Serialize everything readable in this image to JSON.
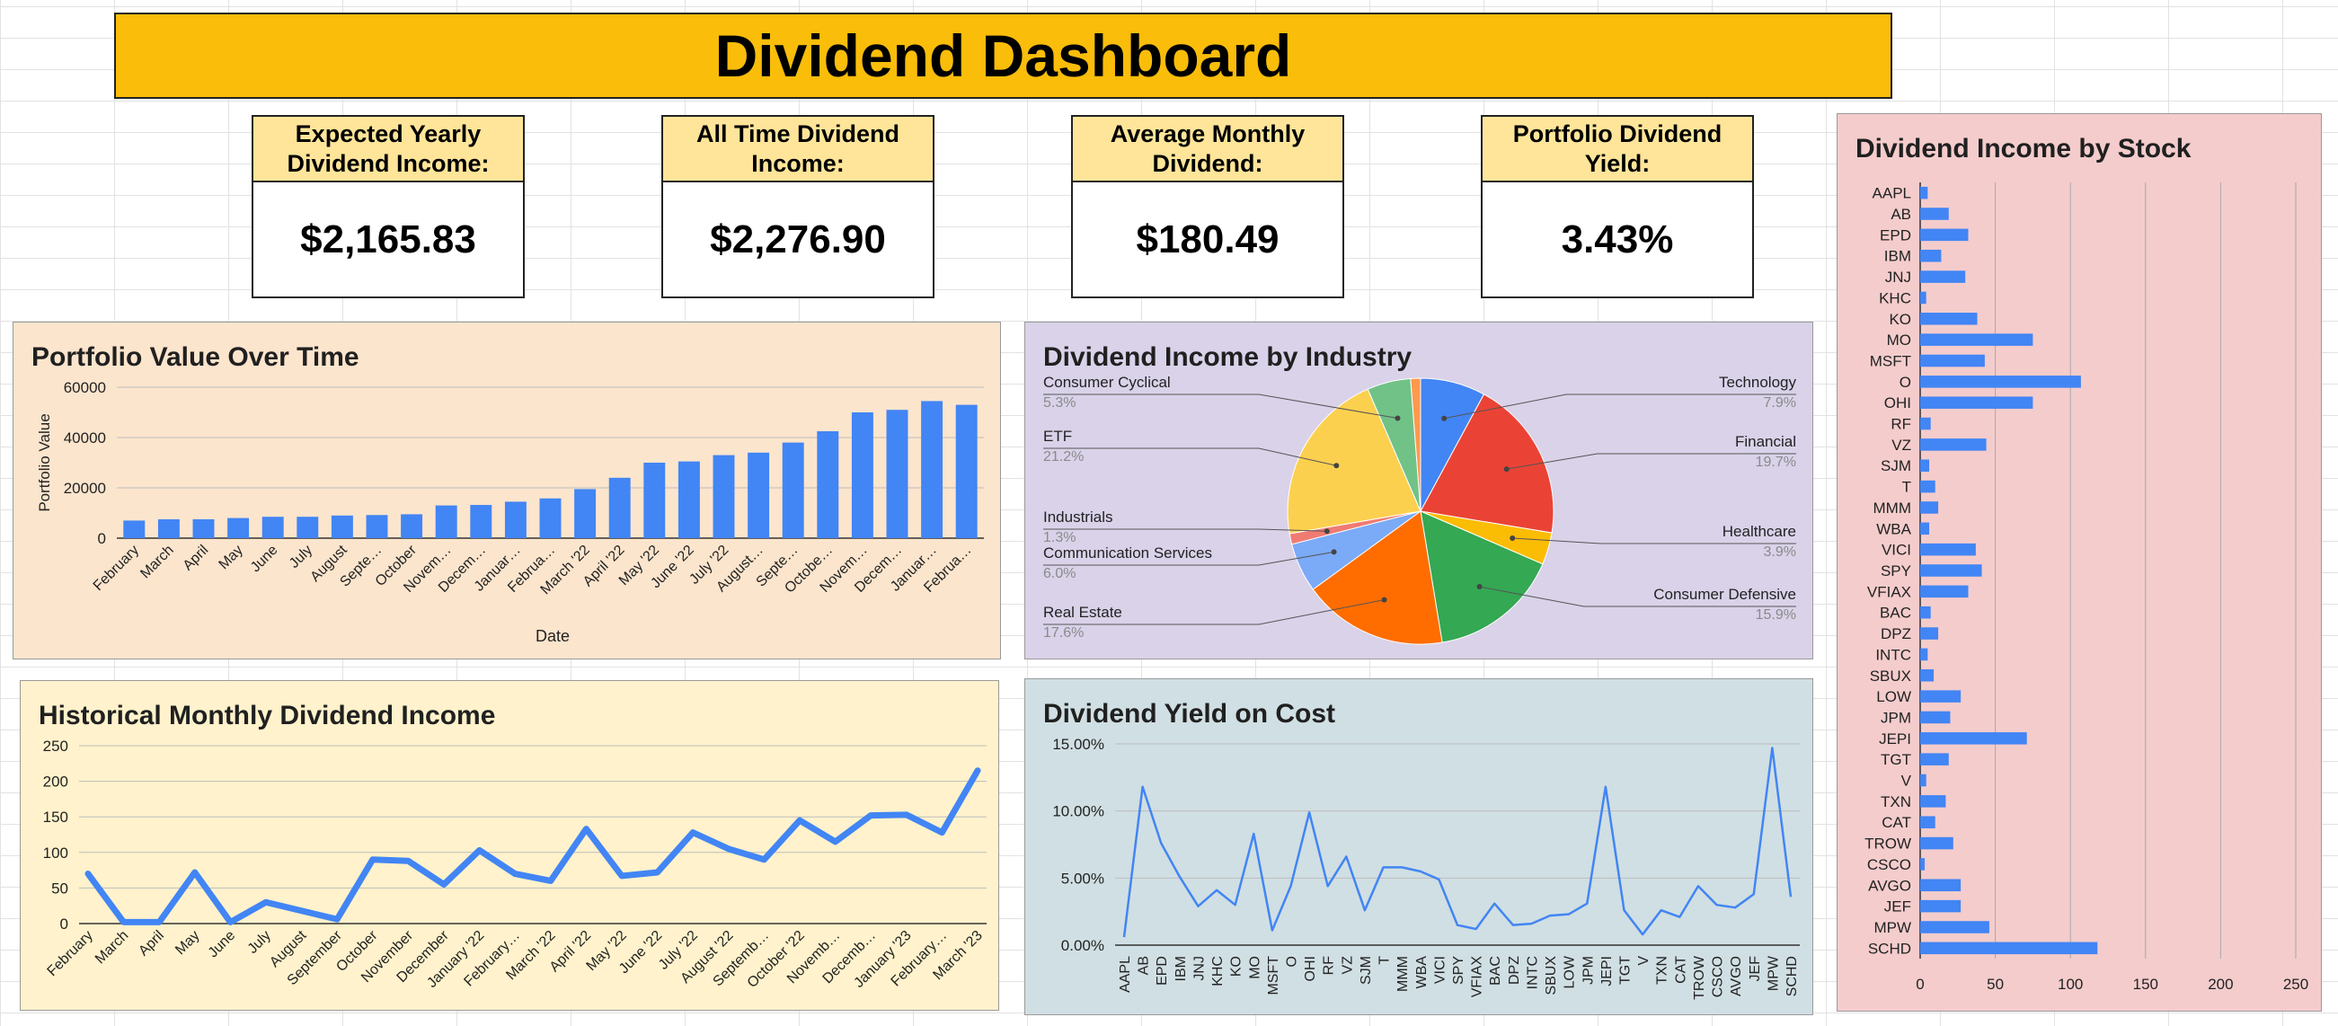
{
  "dashboard_title": "Dividend Dashboard",
  "stats": [
    {
      "label": "Expected Yearly Dividend Income:",
      "value": "$2,165.83"
    },
    {
      "label": "All Time Dividend Income:",
      "value": "$2,276.90"
    },
    {
      "label": "Average Monthly Dividend:",
      "value": "$180.49"
    },
    {
      "label": "Portfolio Dividend Yield:",
      "value": "3.43%"
    }
  ],
  "colors": {
    "banner": "#f9bd0a",
    "stat_label_bg": "#ffe599",
    "bar_blue": "#4285f4",
    "portfolio_panel_bg": "#fce5cd",
    "industry_panel_bg": "#d9d2e9",
    "monthly_panel_bg": "#fff2cc",
    "yield_panel_bg": "#d0dfe3",
    "stock_panel_bg": "#f4cccc"
  },
  "chart_data": [
    {
      "id": "portfolio",
      "type": "bar",
      "title": "Portfolio Value Over Time",
      "xlabel": "Date",
      "ylabel": "Portfolio Value",
      "ylim": [
        0,
        60000
      ],
      "yticks": [
        0,
        20000,
        40000,
        60000
      ],
      "grid": true,
      "categories": [
        "February",
        "March",
        "April",
        "May",
        "June",
        "July",
        "August",
        "Septe…",
        "October",
        "Novem…",
        "Decem…",
        "Januar…",
        "Februa…",
        "March '22",
        "April '22",
        "May '22",
        "June '22",
        "July '22",
        "August…",
        "Septe…",
        "Octobe…",
        "Novem…",
        "Decem…",
        "Januar…",
        "Februa…"
      ],
      "labeled_every": 1,
      "values": [
        7000,
        7500,
        7500,
        8000,
        8500,
        8500,
        9000,
        9200,
        9500,
        13000,
        13200,
        14500,
        15800,
        19500,
        24000,
        30000,
        30500,
        33000,
        34000,
        38000,
        42500,
        50000,
        51000,
        54500,
        53000
      ]
    },
    {
      "id": "industry",
      "type": "pie",
      "title": "Dividend Income by Industry",
      "slices": [
        {
          "label": "Technology",
          "pct": "7.9%",
          "value": 7.9,
          "color": "#4285f4"
        },
        {
          "label": "Financial",
          "pct": "19.7%",
          "value": 19.7,
          "color": "#ea4335"
        },
        {
          "label": "Healthcare",
          "pct": "3.9%",
          "value": 3.9,
          "color": "#fbbc04"
        },
        {
          "label": "Consumer Defensive",
          "pct": "15.9%",
          "value": 15.9,
          "color": "#34a853"
        },
        {
          "label": "Real Estate",
          "pct": "17.6%",
          "value": 17.6,
          "color": "#ff6d01"
        },
        {
          "label": "Communication Services",
          "pct": "6.0%",
          "value": 6.0,
          "color": "#7baaf7"
        },
        {
          "label": "Industrials",
          "pct": "1.3%",
          "value": 1.3,
          "color": "#f07b72"
        },
        {
          "label": "ETF",
          "pct": "21.2%",
          "value": 21.2,
          "color": "#fcd04f"
        },
        {
          "label": "Consumer Cyclical",
          "pct": "5.3%",
          "value": 5.3,
          "color": "#71c287"
        },
        {
          "label": "",
          "pct": "",
          "value": 1.2,
          "color": "#ff994d"
        }
      ]
    },
    {
      "id": "monthly",
      "type": "line",
      "title": "Historical Monthly Dividend Income",
      "ylim": [
        0,
        250
      ],
      "yticks": [
        0,
        50,
        100,
        150,
        200,
        250
      ],
      "grid": true,
      "categories": [
        "February",
        "March",
        "April",
        "May",
        "June",
        "July",
        "August",
        "September",
        "October",
        "November",
        "December",
        "January '22",
        "February…",
        "March '22",
        "April '22",
        "May '22",
        "June '22",
        "July '22",
        "August '22",
        "Septemb…",
        "October '22",
        "Novemb…",
        "Decemb…",
        "January '23",
        "February…",
        "March '23"
      ],
      "values": [
        70,
        2,
        2,
        72,
        2,
        30,
        18,
        6,
        90,
        88,
        55,
        103,
        70,
        60,
        133,
        67,
        72,
        128,
        105,
        90,
        145,
        115,
        152,
        153,
        128,
        215
      ]
    },
    {
      "id": "yield",
      "type": "line",
      "title": "Dividend Yield on Cost",
      "ylim": [
        0,
        15
      ],
      "yticks": [
        "0.00%",
        "5.00%",
        "10.00%",
        "15.00%"
      ],
      "grid": true,
      "categories": [
        "AAPL",
        "AB",
        "EPD",
        "IBM",
        "JNJ",
        "KHC",
        "KO",
        "MO",
        "MSFT",
        "O",
        "OHI",
        "RF",
        "VZ",
        "SJM",
        "T",
        "MMM",
        "WBA",
        "VICI",
        "SPY",
        "VFIAX",
        "BAC",
        "DPZ",
        "INTC",
        "SBUX",
        "LOW",
        "JPM",
        "JEPI",
        "TGT",
        "V",
        "TXN",
        "CAT",
        "TROW",
        "CSCO",
        "AVGO",
        "JEF",
        "MPW",
        "SCHD"
      ],
      "values": [
        0.6,
        11.8,
        7.6,
        5.1,
        2.9,
        4.1,
        3.0,
        8.3,
        1.1,
        4.4,
        9.9,
        4.4,
        6.6,
        2.6,
        5.8,
        5.8,
        5.5,
        4.9,
        1.5,
        1.2,
        3.1,
        1.5,
        1.6,
        2.2,
        2.3,
        3.1,
        11.8,
        2.6,
        0.8,
        2.6,
        2.1,
        4.4,
        3.0,
        2.8,
        3.8,
        14.7,
        3.6
      ]
    },
    {
      "id": "stocks",
      "type": "bar",
      "orientation": "horizontal",
      "title": "Dividend Income by Stock",
      "xlim": [
        0,
        250
      ],
      "xticks": [
        0,
        50,
        100,
        150,
        200,
        250
      ],
      "grid": true,
      "categories": [
        "AAPL",
        "AB",
        "EPD",
        "IBM",
        "JNJ",
        "KHC",
        "KO",
        "MO",
        "MSFT",
        "O",
        "OHI",
        "RF",
        "VZ",
        "SJM",
        "T",
        "MMM",
        "WBA",
        "VICI",
        "SPY",
        "VFIAX",
        "BAC",
        "DPZ",
        "INTC",
        "SBUX",
        "LOW",
        "JPM",
        "JEPI",
        "TGT",
        "V",
        "TXN",
        "CAT",
        "TROW",
        "CSCO",
        "AVGO",
        "JEF",
        "MPW",
        "SCHD"
      ],
      "values": [
        5,
        19,
        32,
        14,
        30,
        4,
        38,
        75,
        43,
        107,
        75,
        7,
        44,
        6,
        10,
        12,
        6,
        37,
        41,
        32,
        7,
        12,
        5,
        9,
        27,
        20,
        71,
        19,
        4,
        17,
        10,
        22,
        3,
        27,
        27,
        46,
        118
      ]
    }
  ]
}
